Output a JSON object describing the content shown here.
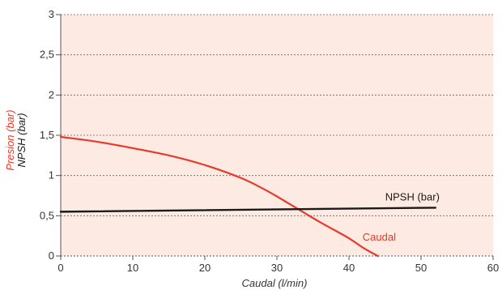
{
  "chart_data": {
    "type": "line",
    "title": "",
    "xlabel": "Caudal (l/min)",
    "ylabel_primary": "Presion (bar)",
    "ylabel_secondary": "NPSH (bar)",
    "xlim": [
      0,
      60
    ],
    "ylim": [
      0,
      3
    ],
    "x_ticks": [
      0,
      10,
      20,
      30,
      40,
      50,
      60
    ],
    "y_ticks": [
      0,
      0.5,
      1,
      1.5,
      2,
      2.5,
      3
    ],
    "x_tick_labels": [
      "0",
      "10",
      "20",
      "30",
      "40",
      "50",
      "60"
    ],
    "y_tick_labels": [
      "0",
      "0,5",
      "1",
      "1,5",
      "2",
      "2,5",
      "3"
    ],
    "grid": "horizontal-dashed",
    "series": [
      {
        "name": "Caudal",
        "color": "#e8392b",
        "points": [
          [
            0,
            1.48
          ],
          [
            5,
            1.42
          ],
          [
            10,
            1.34
          ],
          [
            15,
            1.25
          ],
          [
            20,
            1.13
          ],
          [
            25,
            0.97
          ],
          [
            28,
            0.84
          ],
          [
            30,
            0.74
          ],
          [
            33,
            0.58
          ],
          [
            36,
            0.42
          ],
          [
            40,
            0.22
          ],
          [
            42,
            0.1
          ],
          [
            44,
            0.0
          ]
        ]
      },
      {
        "name": "NPSH (bar)",
        "color": "#1a1a1a",
        "points": [
          [
            0,
            0.55
          ],
          [
            52,
            0.6
          ]
        ]
      }
    ],
    "colors": {
      "plot_background": "#fdebe3",
      "grid": "#666666",
      "axis": "#555555"
    }
  }
}
